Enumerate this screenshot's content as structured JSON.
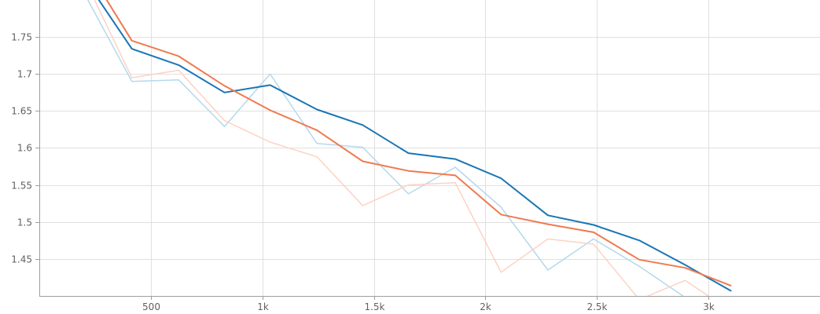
{
  "chart_data": {
    "type": "line",
    "title": "",
    "xlabel": "",
    "ylabel": "",
    "grid": true,
    "xlim": [
      0,
      3500
    ],
    "ylim": [
      1.4,
      1.8
    ],
    "x_ticks": [
      500,
      1000,
      1500,
      2000,
      2500,
      3000
    ],
    "x_tick_labels": [
      "500",
      "1k",
      "1.5k",
      "2k",
      "2.5k",
      "3k"
    ],
    "y_ticks": [
      1.45,
      1.5,
      1.55,
      1.6,
      1.65,
      1.7,
      1.75
    ],
    "y_tick_labels": [
      "1.45",
      "1.5",
      "1.55",
      "1.6",
      "1.65",
      "1.7",
      "1.75"
    ],
    "series": [
      {
        "color": "#b3d9ee",
        "width": 1.5,
        "x": [
          200,
          415,
          625,
          830,
          1035,
          1245,
          1450,
          1655,
          1865,
          2070,
          2280,
          2485,
          2690,
          2895,
          3000
        ],
        "values": [
          1.81,
          1.69,
          1.692,
          1.629,
          1.7,
          1.606,
          1.601,
          1.538,
          1.574,
          1.52,
          1.435,
          1.477,
          1.44,
          1.398,
          1.39
        ]
      },
      {
        "color": "#fdd2c3",
        "width": 1.5,
        "x": [
          200,
          415,
          625,
          830,
          1035,
          1245,
          1450,
          1655,
          1865,
          2070,
          2280,
          2485,
          2690,
          2895,
          3000
        ],
        "values": [
          1.83,
          1.695,
          1.705,
          1.637,
          1.608,
          1.588,
          1.522,
          1.55,
          1.553,
          1.432,
          1.477,
          1.47,
          1.395,
          1.421,
          1.4
        ]
      },
      {
        "color": "#1a75b4",
        "width": 2,
        "x": [
          200,
          415,
          625,
          830,
          1035,
          1245,
          1450,
          1655,
          1865,
          2070,
          2280,
          2485,
          2690,
          2895,
          3100
        ],
        "values": [
          1.83,
          1.734,
          1.712,
          1.675,
          1.685,
          1.652,
          1.631,
          1.593,
          1.585,
          1.559,
          1.509,
          1.496,
          1.475,
          1.442,
          1.407
        ]
      },
      {
        "color": "#f07a4f",
        "width": 2,
        "x": [
          200,
          415,
          625,
          830,
          1035,
          1245,
          1450,
          1655,
          1865,
          2070,
          2280,
          2485,
          2690,
          2895,
          3100
        ],
        "values": [
          1.85,
          1.745,
          1.724,
          1.684,
          1.651,
          1.624,
          1.582,
          1.569,
          1.563,
          1.51,
          1.497,
          1.486,
          1.449,
          1.438,
          1.414
        ]
      }
    ]
  }
}
